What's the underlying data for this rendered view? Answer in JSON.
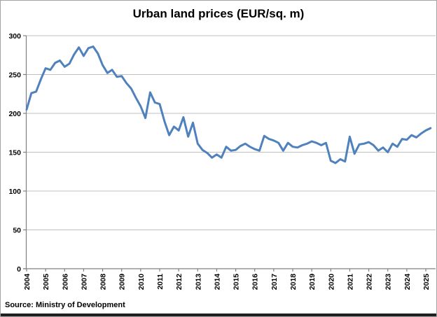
{
  "title": "Urban land prices (EUR/sq. m)",
  "source_note": "Source: Ministry of Development",
  "chart_data": {
    "type": "line",
    "title": "Urban land prices (EUR/sq. m)",
    "xlabel": "",
    "ylabel": "",
    "frequency": "quarterly",
    "x_start_year": 2004,
    "series": [
      {
        "name": "Urban land price (EUR/sq. m)",
        "color": "#4F81BD",
        "values": [
          205,
          226,
          228,
          244,
          258,
          256,
          265,
          268,
          260,
          264,
          276,
          285,
          274,
          284,
          286,
          277,
          262,
          252,
          256,
          247,
          248,
          239,
          232,
          220,
          209,
          194,
          227,
          214,
          212,
          190,
          172,
          183,
          178,
          195,
          170,
          188,
          161,
          153,
          149,
          143,
          147,
          143,
          157,
          152,
          153,
          158,
          161,
          157,
          154,
          152,
          171,
          167,
          165,
          162,
          152,
          162,
          157,
          156,
          159,
          161,
          164,
          162,
          159,
          162,
          139,
          136,
          141,
          138,
          170,
          148,
          160,
          161,
          163,
          159,
          152,
          156,
          150,
          161,
          157,
          167,
          166,
          172,
          169,
          174,
          178,
          181
        ]
      }
    ],
    "xticks": [
      2004,
      2005,
      2006,
      2007,
      2008,
      2009,
      2010,
      2011,
      2012,
      2013,
      2014,
      2015,
      2016,
      2017,
      2018,
      2019,
      2020,
      2021,
      2022,
      2023,
      2024,
      2025
    ],
    "yticks": [
      0,
      50,
      100,
      150,
      200,
      250,
      300
    ],
    "ylim": [
      0,
      300
    ],
    "grid": true,
    "legend": false,
    "gridline_color": "#bfbfbf",
    "axis_color": "#808080"
  }
}
